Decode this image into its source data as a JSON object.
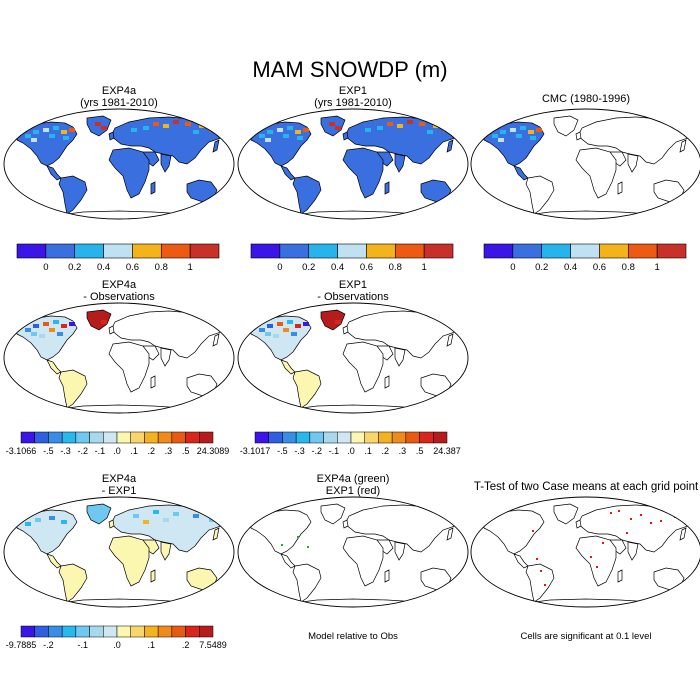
{
  "chart_data": {
    "type": "map-panel-grid",
    "title": "MAM SNOWDP (m)",
    "colors": {
      "cool": [
        "#3b14e6",
        "#2f5fe0",
        "#3a8de6",
        "#27b8ee",
        "#6ec8f0",
        "#a8d8ec",
        "#cfe7f2"
      ],
      "zero": "#fbf6b0",
      "warm": [
        "#f8d66a",
        "#f4b21f",
        "#f08a1a",
        "#e85a12",
        "#d8261a",
        "#b71c1c"
      ],
      "absolute": [
        "#3b14e6",
        "#3a6fe0",
        "#27b4ec",
        "#bfe1f2",
        "#f2b31c",
        "#ec5a14",
        "#c8302a"
      ],
      "land_fill": "#3a6fe0",
      "green": "#22aa33",
      "red": "#e01818"
    },
    "panels": [
      {
        "id": "exp4a",
        "title_lines": [
          "EXP4a",
          "(yrs 1981-2010)"
        ],
        "kind": "absolute",
        "coverage": "global",
        "colorbar": {
          "labels": [
            "0",
            "0.2",
            "0.4",
            "0.6",
            "0.8",
            "1"
          ],
          "n_colors": 7
        }
      },
      {
        "id": "exp1",
        "title_lines": [
          "EXP1",
          "(yrs 1981-2010)"
        ],
        "kind": "absolute",
        "coverage": "global",
        "colorbar": {
          "labels": [
            "0",
            "0.2",
            "0.4",
            "0.6",
            "0.8",
            "1"
          ],
          "n_colors": 7
        }
      },
      {
        "id": "cmc",
        "title_lines": [
          "CMC (1980-1996)"
        ],
        "kind": "absolute",
        "coverage": "north-america",
        "colorbar": {
          "labels": [
            "0",
            "0.2",
            "0.4",
            "0.6",
            "0.8",
            "1"
          ],
          "n_colors": 7
        }
      },
      {
        "id": "exp4a-obs",
        "title_lines": [
          "EXP4a",
          "- Observations"
        ],
        "kind": "difference",
        "coverage": "north-america",
        "colorbar": {
          "min_label": "-3.1066",
          "max_label": "24.3089",
          "labels": [
            "-.5",
            "-.3",
            "-.2",
            "-.1",
            ".0",
            ".1",
            ".2",
            ".3",
            ".5"
          ],
          "n_colors": 14
        }
      },
      {
        "id": "exp1-obs",
        "title_lines": [
          "EXP1",
          "- Observations"
        ],
        "kind": "difference",
        "coverage": "north-america",
        "colorbar": {
          "min_label": "-3.1017",
          "max_label": "24.387",
          "labels": [
            "-.5",
            "-.3",
            "-.2",
            "-.1",
            ".0",
            ".1",
            ".2",
            ".3",
            ".5"
          ],
          "n_colors": 14
        }
      },
      {
        "id": "exp4a-exp1",
        "title_lines": [
          "EXP4a",
          "- EXP1"
        ],
        "kind": "model-difference",
        "coverage": "global",
        "colorbar": {
          "min_label": "-9.7885",
          "max_label": "7.5489",
          "labels": [
            "-.2",
            "-.1",
            ".0",
            ".1",
            ".2"
          ],
          "n_colors": 14
        }
      },
      {
        "id": "rel-obs",
        "title_lines": [
          "EXP4a (green)",
          "EXP1 (red)"
        ],
        "kind": "outline",
        "coverage": "none",
        "caption": "Model relative to Obs"
      },
      {
        "id": "ttest",
        "title_lines": [
          "T-Test of two Case means at each grid point"
        ],
        "kind": "significance",
        "coverage": "dots",
        "caption": "Cells are significant at 0.1 level"
      }
    ]
  }
}
